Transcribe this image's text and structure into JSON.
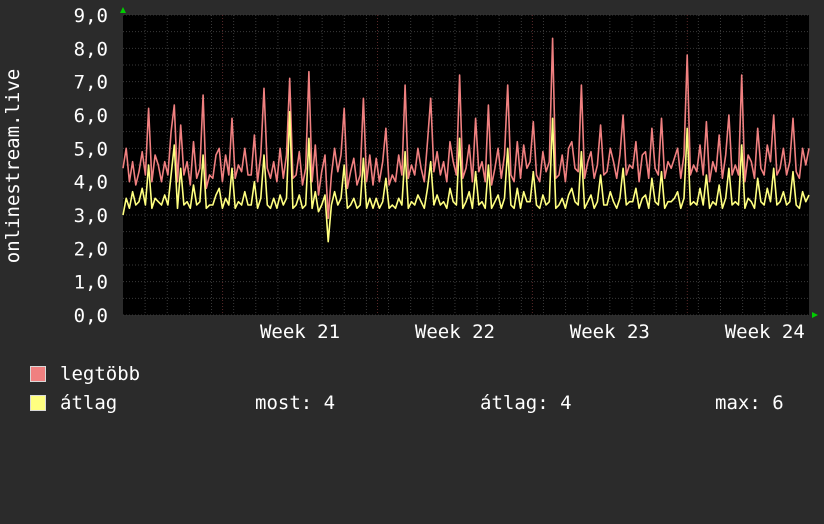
{
  "colors": {
    "background": "#2b2b2b",
    "plot_background": "#000000",
    "grid": "#3a3a3a",
    "week_grid": "#5a2a2a",
    "max_series": "#f08080",
    "avg_series": "#ffff80",
    "axis_arrow": "#00cc00"
  },
  "chart_data": {
    "type": "line",
    "ylabel": "onlinestream.live",
    "ylim": [
      0,
      9
    ],
    "yticks": [
      "0,0",
      "1,0",
      "2,0",
      "3,0",
      "4,0",
      "5,0",
      "6,0",
      "7,0",
      "8,0",
      "9,0"
    ],
    "xticks": [
      "Week 21",
      "Week 22",
      "Week 23",
      "Week 24"
    ],
    "grid": true,
    "series": [
      {
        "name": "legtöbb",
        "color": "#f08080",
        "values": [
          4.4,
          5.0,
          4.0,
          4.6,
          3.9,
          4.3,
          4.9,
          4.2,
          6.2,
          4.0,
          4.8,
          4.5,
          4.0,
          4.6,
          4.2,
          5.5,
          6.3,
          4.0,
          5.7,
          4.2,
          4.6,
          3.9,
          5.2,
          4.1,
          4.4,
          6.6,
          3.8,
          4.2,
          4.1,
          4.8,
          5.0,
          4.0,
          4.8,
          4.2,
          5.9,
          4.1,
          4.5,
          4.3,
          5.0,
          4.2,
          4.2,
          5.4,
          4.0,
          4.8,
          6.8,
          4.4,
          4.1,
          4.6,
          4.0,
          5.0,
          4.1,
          4.8,
          7.1,
          4.1,
          4.2,
          4.9,
          3.9,
          4.4,
          7.3,
          4.0,
          5.1,
          3.6,
          4.3,
          4.8,
          2.9,
          4.2,
          5.0,
          4.3,
          4.8,
          6.2,
          3.8,
          4.3,
          4.7,
          3.9,
          4.2,
          6.5,
          4.0,
          4.8,
          3.9,
          4.7,
          4.0,
          4.6,
          5.6,
          3.9,
          4.2,
          4.0,
          4.8,
          4.2,
          6.9,
          4.1,
          4.5,
          4.2,
          5.0,
          4.4,
          4.0,
          5.2,
          6.5,
          4.3,
          4.9,
          4.2,
          4.6,
          4.0,
          5.2,
          4.6,
          4.2,
          7.2,
          4.1,
          4.4,
          5.1,
          4.0,
          5.9,
          4.3,
          4.6,
          4.0,
          6.3,
          3.9,
          4.4,
          5.0,
          4.1,
          4.8,
          6.9,
          4.2,
          4.0,
          5.2,
          4.1,
          5.1,
          4.4,
          4.6,
          5.8,
          4.2,
          4.0,
          4.9,
          4.3,
          4.6,
          8.3,
          4.1,
          4.2,
          4.8,
          4.0,
          5.0,
          5.2,
          4.4,
          4.3,
          6.9,
          4.1,
          4.6,
          4.9,
          4.1,
          4.5,
          5.7,
          4.2,
          4.3,
          5.0,
          4.6,
          4.1,
          4.8,
          6.0,
          4.2,
          4.5,
          4.4,
          5.2,
          4.0,
          4.8,
          4.9,
          4.1,
          5.6,
          4.4,
          4.2,
          5.9,
          4.1,
          4.6,
          4.4,
          4.7,
          5.0,
          4.1,
          4.8,
          7.8,
          4.2,
          4.5,
          4.3,
          5.1,
          4.2,
          5.8,
          4.0,
          4.6,
          4.3,
          5.4,
          4.1,
          4.8,
          6.0,
          4.2,
          4.5,
          4.2,
          7.2,
          4.0,
          4.8,
          4.6,
          4.1,
          5.6,
          4.4,
          4.2,
          5.1,
          4.6,
          6.0,
          4.2,
          4.4,
          5.0,
          4.2,
          4.6,
          5.9,
          4.3,
          4.1,
          5.0,
          4.5,
          5.0
        ]
      },
      {
        "name": "átlag",
        "color": "#ffff80",
        "values": [
          3.0,
          3.5,
          3.2,
          3.7,
          3.3,
          3.4,
          3.8,
          3.3,
          4.5,
          3.2,
          3.5,
          3.4,
          3.3,
          3.6,
          3.3,
          4.2,
          5.1,
          3.2,
          4.4,
          3.3,
          3.4,
          3.2,
          3.9,
          3.3,
          3.4,
          4.8,
          3.2,
          3.3,
          3.3,
          3.6,
          3.8,
          3.2,
          3.5,
          3.3,
          4.4,
          3.2,
          3.4,
          3.3,
          3.7,
          3.3,
          3.3,
          4.0,
          3.2,
          3.5,
          4.8,
          3.3,
          3.2,
          3.5,
          3.2,
          3.6,
          3.3,
          3.5,
          6.1,
          3.2,
          3.3,
          3.6,
          3.2,
          3.3,
          5.3,
          3.2,
          3.7,
          3.1,
          3.3,
          3.6,
          2.2,
          3.3,
          3.7,
          3.3,
          3.5,
          4.5,
          3.2,
          3.3,
          3.5,
          3.2,
          3.3,
          4.7,
          3.2,
          3.5,
          3.2,
          3.5,
          3.2,
          3.4,
          4.1,
          3.2,
          3.3,
          3.2,
          3.5,
          3.3,
          4.9,
          3.2,
          3.4,
          3.3,
          3.6,
          3.4,
          3.2,
          3.8,
          4.6,
          3.3,
          3.6,
          3.3,
          3.4,
          3.2,
          3.8,
          3.4,
          3.3,
          5.3,
          3.2,
          3.4,
          3.7,
          3.2,
          4.3,
          3.3,
          3.4,
          3.2,
          4.5,
          3.2,
          3.4,
          3.6,
          3.2,
          3.5,
          5.0,
          3.3,
          3.2,
          3.8,
          3.2,
          3.7,
          3.4,
          3.4,
          4.3,
          3.3,
          3.2,
          3.6,
          3.3,
          3.4,
          5.9,
          3.2,
          3.3,
          3.5,
          3.2,
          3.6,
          3.8,
          3.4,
          3.3,
          4.9,
          3.2,
          3.4,
          3.6,
          3.2,
          3.4,
          4.2,
          3.3,
          3.3,
          3.7,
          3.4,
          3.2,
          3.5,
          4.4,
          3.3,
          3.4,
          3.4,
          3.8,
          3.2,
          3.5,
          3.6,
          3.2,
          4.1,
          3.4,
          3.3,
          4.3,
          3.2,
          3.4,
          3.4,
          3.5,
          3.7,
          3.2,
          3.5,
          5.6,
          3.3,
          3.4,
          3.3,
          3.8,
          3.3,
          4.2,
          3.2,
          3.4,
          3.3,
          3.9,
          3.2,
          3.5,
          4.4,
          3.3,
          3.4,
          3.3,
          5.1,
          3.2,
          3.5,
          3.4,
          3.2,
          4.1,
          3.4,
          3.3,
          3.8,
          3.4,
          4.4,
          3.3,
          3.4,
          3.7,
          3.3,
          3.4,
          4.3,
          3.3,
          3.2,
          3.7,
          3.4,
          3.6
        ]
      }
    ]
  },
  "legend": {
    "items": [
      {
        "label": "legtöbb",
        "color": "#f08080"
      },
      {
        "label": "átlag",
        "color": "#ffff80"
      }
    ],
    "stats": {
      "most": "most: 4",
      "atlag": "átlag: 4",
      "max": "max: 6"
    }
  }
}
